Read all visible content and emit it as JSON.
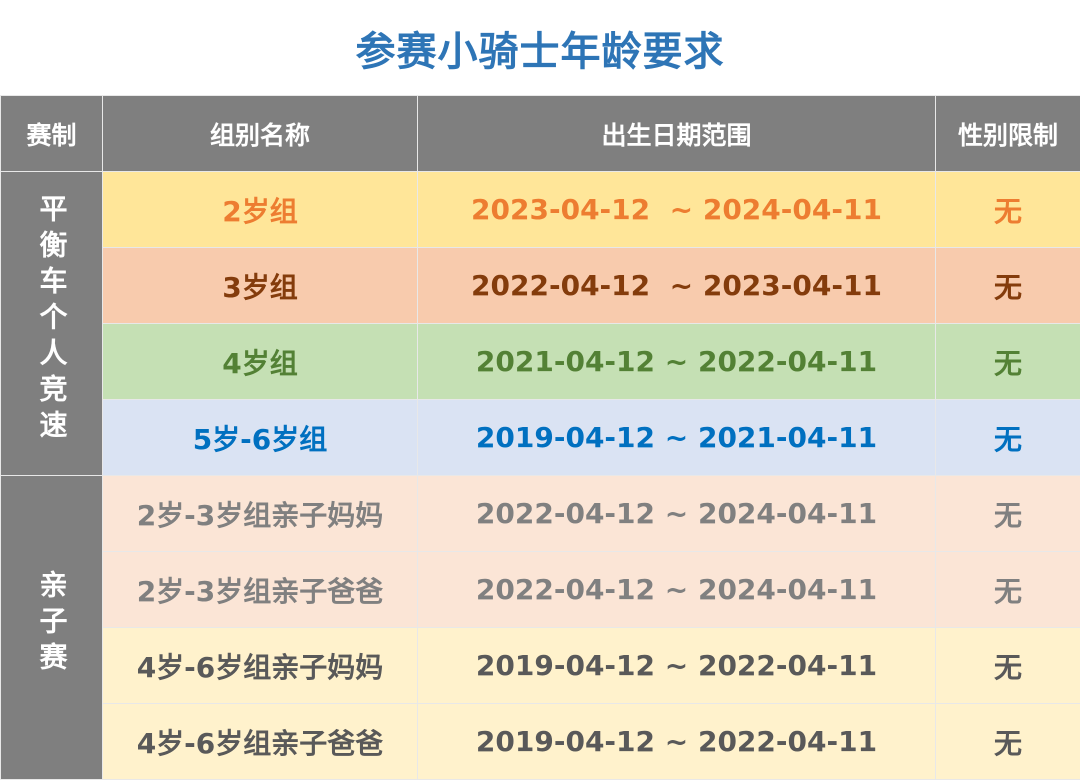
{
  "title": "参赛小骑士年龄要求",
  "headers": [
    "赛制",
    "组别名称",
    "出生日期范围",
    "性别限制"
  ],
  "categories": [
    {
      "label": "平衡车个人竞速",
      "chars": [
        "平",
        "衡",
        "车",
        "个",
        "人",
        "竞",
        "速"
      ]
    },
    {
      "label": "亲子赛",
      "chars": [
        "亲",
        "子",
        "赛"
      ]
    }
  ],
  "rows": [
    {
      "group": "2岁组",
      "range": "2023-04-12  ~ 2024-04-11",
      "gender": "无",
      "color": "#ed7d31",
      "bg": "#ffe699"
    },
    {
      "group": "3岁组",
      "range": "2022-04-12  ~ 2023-04-11",
      "gender": "无",
      "color": "#843c0c",
      "bg": "#f8cbad"
    },
    {
      "group": "4岁组",
      "range": "2021-04-12 ~ 2022-04-11",
      "gender": "无",
      "color": "#538135",
      "bg": "#c5e0b4"
    },
    {
      "group": "5岁-6岁组",
      "range": "2019-04-12 ~ 2021-04-11",
      "gender": "无",
      "color": "#0070c0",
      "bg": "#dae3f3"
    },
    {
      "group": "2岁-3岁组亲子妈妈",
      "range": "2022-04-12 ~ 2024-04-11",
      "gender": "无",
      "color": "#808080",
      "bg": "#fbe5d6"
    },
    {
      "group": "2岁-3岁组亲子爸爸",
      "range": "2022-04-12 ~ 2024-04-11",
      "gender": "无",
      "color": "#808080",
      "bg": "#fbe5d6"
    },
    {
      "group": "4岁-6岁组亲子妈妈",
      "range": "2019-04-12 ~ 2022-04-11",
      "gender": "无",
      "color": "#595959",
      "bg": "#fff2cc"
    },
    {
      "group": "4岁-6岁组亲子爸爸",
      "range": "2019-04-12 ~ 2022-04-11",
      "gender": "无",
      "color": "#595959",
      "bg": "#fff2cc"
    }
  ]
}
